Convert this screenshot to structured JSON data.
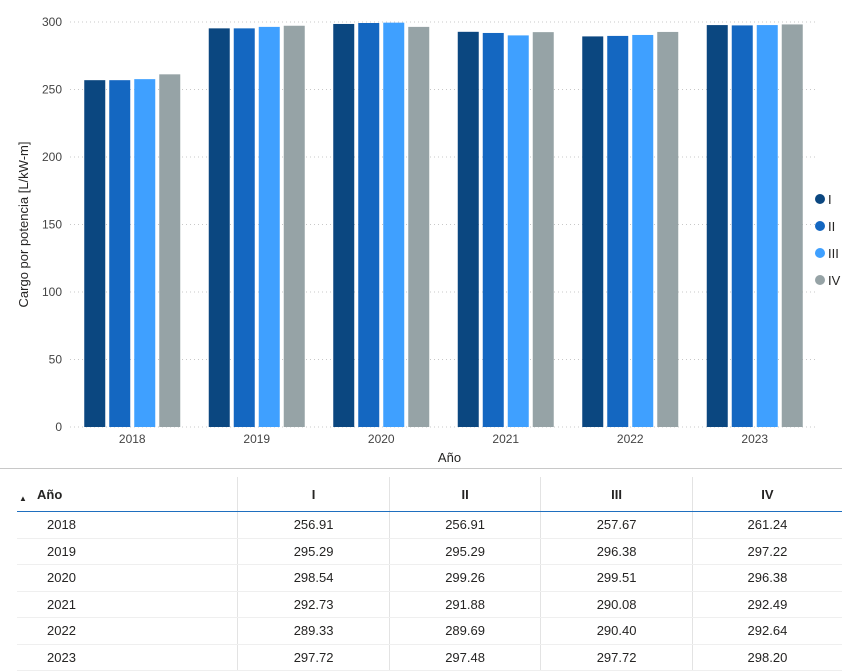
{
  "chart_data": {
    "type": "bar",
    "categories": [
      "2018",
      "2019",
      "2020",
      "2021",
      "2022",
      "2023"
    ],
    "series": [
      {
        "name": "I",
        "color": "#0b4780",
        "values": [
          256.91,
          295.29,
          298.54,
          292.73,
          289.33,
          297.72
        ]
      },
      {
        "name": "II",
        "color": "#1467c1",
        "values": [
          256.91,
          295.29,
          299.26,
          291.88,
          289.69,
          297.48
        ]
      },
      {
        "name": "III",
        "color": "#3fa0ff",
        "values": [
          257.67,
          296.38,
          299.51,
          290.08,
          290.4,
          297.72
        ]
      },
      {
        "name": "IV",
        "color": "#96a3a6",
        "values": [
          261.24,
          297.22,
          296.38,
          292.49,
          292.64,
          298.2
        ]
      }
    ],
    "xlabel": "Año",
    "ylabel": "Cargo por potencia [L/kW-m]",
    "ylim": [
      0,
      300
    ],
    "yticks": [
      "0",
      "50",
      "100",
      "150",
      "200",
      "250",
      "300"
    ],
    "grid": true,
    "legend_position": "right"
  },
  "table": {
    "sort_icon": "sort-ascending-icon",
    "headers": [
      "Año",
      "I",
      "II",
      "III",
      "IV"
    ],
    "rows": [
      [
        "2018",
        "256.91",
        "256.91",
        "257.67",
        "261.24"
      ],
      [
        "2019",
        "295.29",
        "295.29",
        "296.38",
        "297.22"
      ],
      [
        "2020",
        "298.54",
        "299.26",
        "299.51",
        "296.38"
      ],
      [
        "2021",
        "292.73",
        "291.88",
        "290.08",
        "292.49"
      ],
      [
        "2022",
        "289.33",
        "289.69",
        "290.40",
        "292.64"
      ],
      [
        "2023",
        "297.72",
        "297.48",
        "297.72",
        "298.20"
      ]
    ]
  }
}
